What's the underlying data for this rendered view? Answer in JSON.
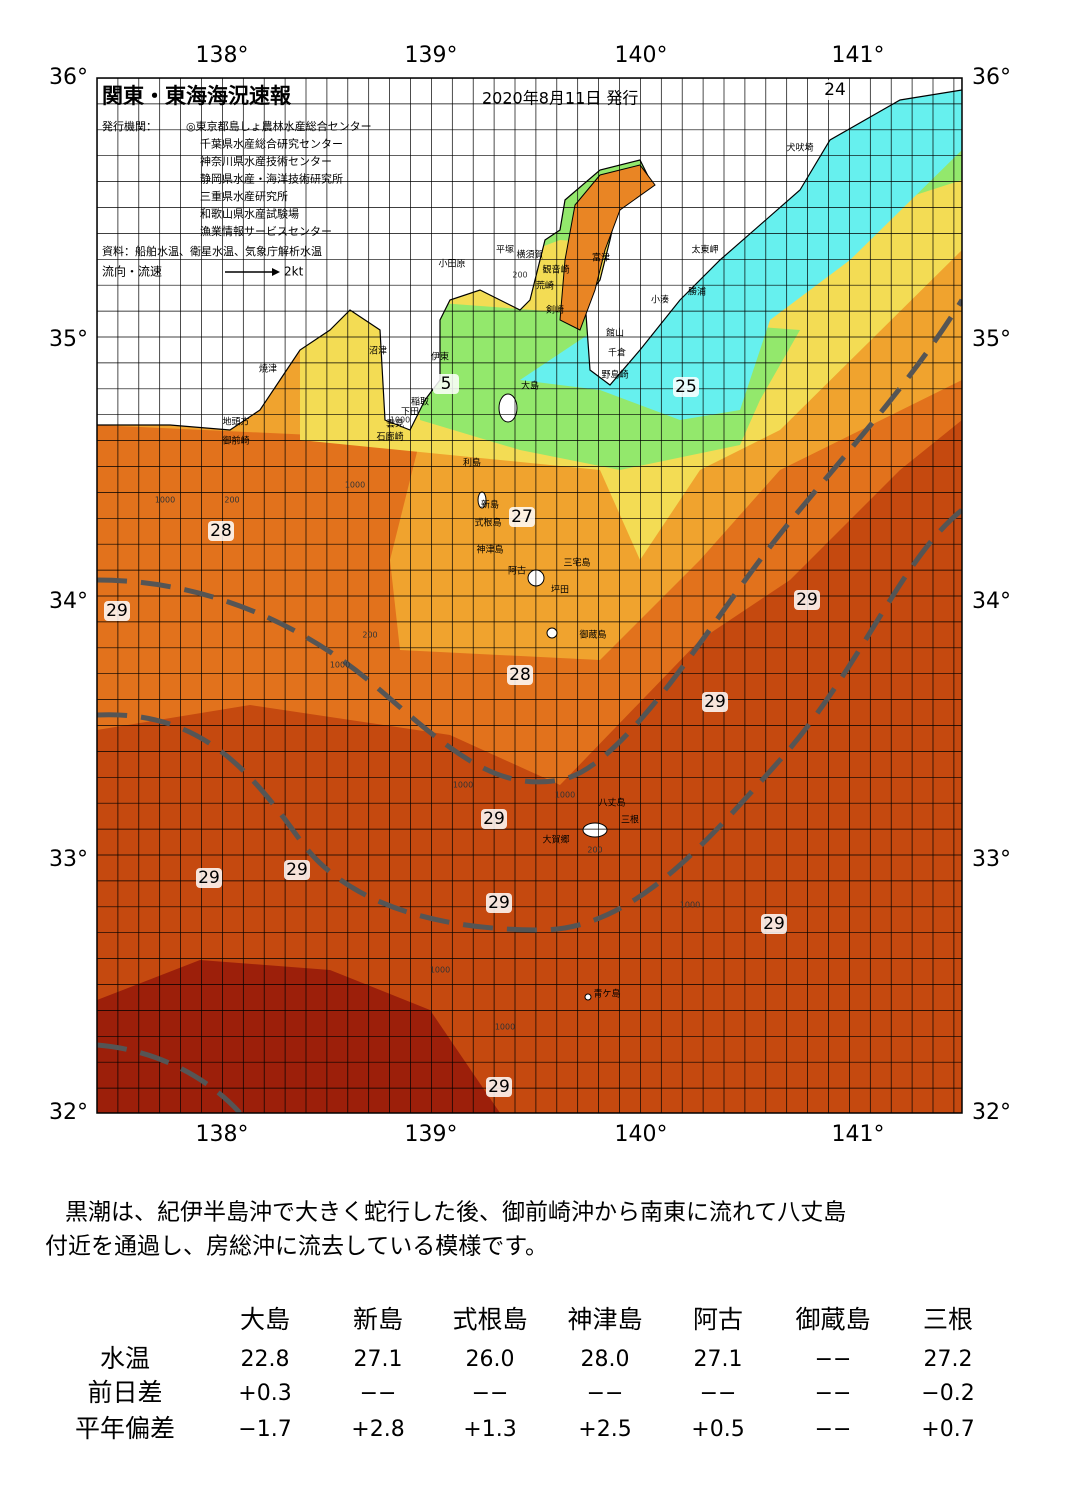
{
  "header": {
    "title": "関東・東海海況速報",
    "date": "2020年8月11日 発行",
    "issuer_label": "発行機関：",
    "issuers": [
      "◎東京都島しょ農林水産総合センター",
      "千葉県水産総合研究センター",
      "神奈川県水産技術センター",
      "静岡県水産・海洋技術研究所",
      "三重県水産研究所",
      "和歌山県水産試験場",
      "漁業情報サービスセンター"
    ],
    "source": "資料：船舶水温、衛星水温、気象庁解析水温",
    "legend_label": "流向・流速",
    "legend_speed": "2kt"
  },
  "map": {
    "lon_labels": [
      "138°",
      "139°",
      "140°",
      "141°"
    ],
    "lat_labels": [
      "36°",
      "35°",
      "34°",
      "33°",
      "32°"
    ],
    "temperature_labels": [
      "24",
      "25",
      "5",
      "27",
      "28",
      "29",
      "29",
      "28",
      "29",
      "29",
      "29",
      "29",
      "29",
      "29",
      "29"
    ],
    "place_names": [
      "犬吠埼",
      "太東岬",
      "勝浦",
      "小湊",
      "富津",
      "横須賀",
      "平塚",
      "小田原",
      "観音崎",
      "荒崎",
      "剣崎",
      "館山",
      "千倉",
      "野島崎",
      "大島",
      "伊東",
      "稲取",
      "下田",
      "雲見",
      "石廊崎",
      "沼津",
      "焼津",
      "地頭方",
      "御前崎",
      "利島",
      "新島",
      "式根島",
      "神津島",
      "阿古",
      "三宅島",
      "坪田",
      "御蔵島",
      "八丈島",
      "三根",
      "大賀郷",
      "青ケ島"
    ],
    "depth_labels": [
      "200",
      "1000",
      "200",
      "1000",
      "1000",
      "200",
      "1000",
      "1000",
      "1000",
      "200",
      "1000",
      "1000",
      "1000"
    ]
  },
  "summary": [
    "黒潮は、紀伊半島沖で大きく蛇行した後、御前崎沖から南東に流れて八丈島",
    "付近を通過し、房総沖に流去している模様です。"
  ],
  "table": {
    "columns": [
      "大島",
      "新島",
      "式根島",
      "神津島",
      "阿古",
      "御蔵島",
      "三根"
    ],
    "rows": [
      {
        "label": "水温",
        "values": [
          "22.8",
          "27.1",
          "26.0",
          "28.0",
          "27.1",
          "−−",
          "27.2"
        ]
      },
      {
        "label": "前日差",
        "values": [
          "+0.3",
          "−−",
          "−−",
          "−−",
          "−−",
          "−−",
          "−0.2"
        ]
      },
      {
        "label": "平年偏差",
        "values": [
          "−1.7",
          "+2.8",
          "+1.3",
          "+2.5",
          "+0.5",
          "−−",
          "+0.7"
        ]
      }
    ]
  }
}
